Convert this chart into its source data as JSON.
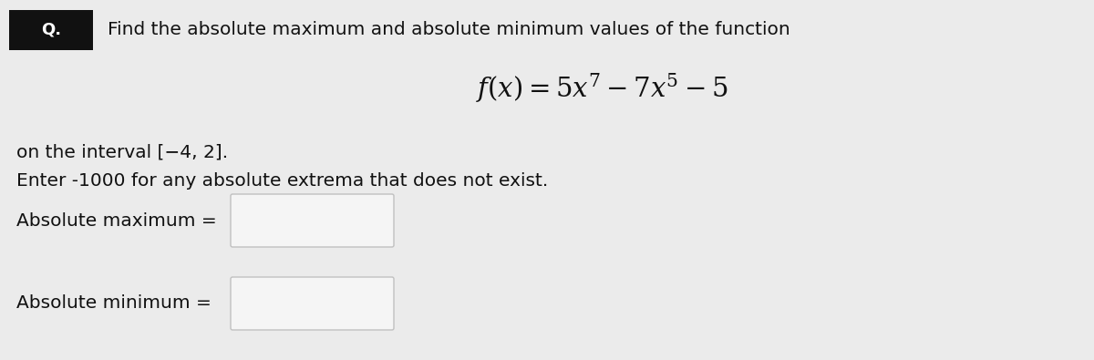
{
  "background_color": "#ebebeb",
  "title_text": "Find the absolute maximum and absolute minimum values of the function",
  "formula": "$f(x) = 5x^7 - 7x^5 - 5$",
  "interval_text": "on the interval [−4, 2].",
  "enter_text": "Enter -1000 for any absolute extrema that does not exist.",
  "abs_max_label": "Absolute maximum =",
  "abs_min_label": "Absolute minimum =",
  "q_box_color": "#111111",
  "q_text_color": "#ffffff",
  "q_label": "Q.",
  "input_box_color": "#f5f5f5",
  "input_box_edge_color": "#c0c0c0",
  "text_color": "#111111",
  "font_size_main": 14.5,
  "font_size_formula": 21,
  "font_size_label": 14.5,
  "q_fontsize": 13
}
